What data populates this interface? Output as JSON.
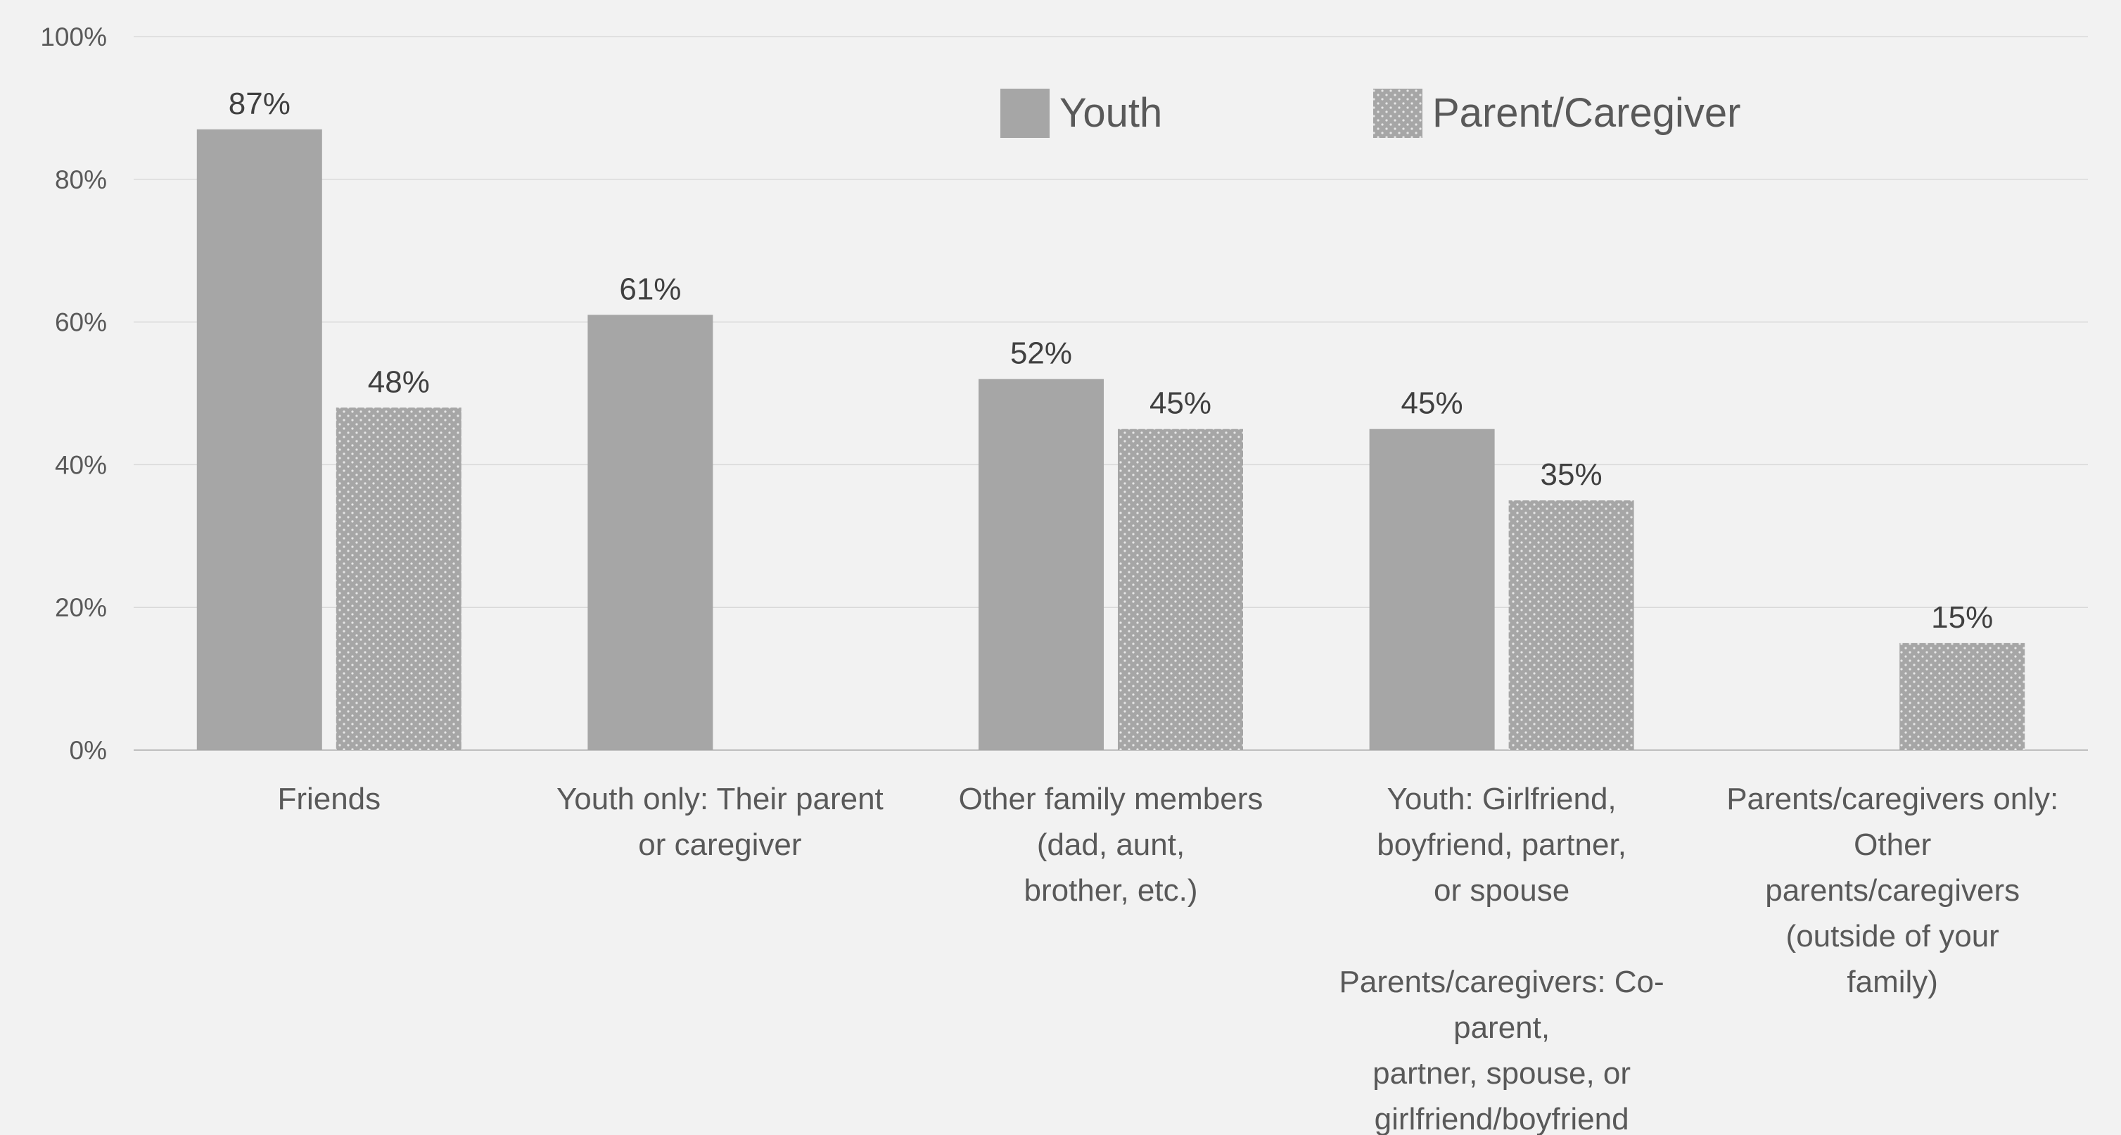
{
  "chart_data": {
    "type": "bar",
    "categories": [
      [
        "Friends"
      ],
      [
        "Youth only: Their parent",
        "or caregiver"
      ],
      [
        "Other family members",
        "(dad, aunt,",
        "brother, etc.)"
      ],
      [
        "Youth: Girlfriend,",
        "boyfriend, partner,",
        "or spouse",
        "",
        "Parents/caregivers: Co-",
        "parent,",
        "partner, spouse, or",
        "girlfriend/boyfriend"
      ],
      [
        "Parents/caregivers only:",
        "Other",
        "parents/caregivers",
        "(outside of your",
        "family)"
      ]
    ],
    "series": [
      {
        "name": "Youth",
        "values": [
          87,
          61,
          52,
          45,
          null
        ],
        "labels": [
          "87%",
          "61%",
          "52%",
          "45%",
          ""
        ],
        "color": "#a6a6a6",
        "pattern": "solid"
      },
      {
        "name": "Parent/Caregiver",
        "values": [
          48,
          null,
          45,
          35,
          15
        ],
        "labels": [
          "48%",
          "",
          "45%",
          "35%",
          "15%"
        ],
        "color": "#a6a6a6",
        "pattern": "dotted"
      }
    ],
    "ylim": [
      0,
      100
    ],
    "yticks": [
      0,
      20,
      40,
      60,
      80,
      100
    ],
    "ytick_labels": [
      "0%",
      "20%",
      "40%",
      "60%",
      "80%",
      "100%"
    ],
    "title": "",
    "xlabel": "",
    "ylabel": "",
    "grid": true,
    "legend_position": "top-right",
    "colors": {
      "background": "#f2f2f2",
      "grid": "#d9d9d9",
      "axis": "#bfbfbf",
      "tick_text": "#595959",
      "value_text": "#404040",
      "legend_text": "#595959",
      "bar": "#a6a6a6",
      "dot": "#e6e6e6"
    }
  }
}
